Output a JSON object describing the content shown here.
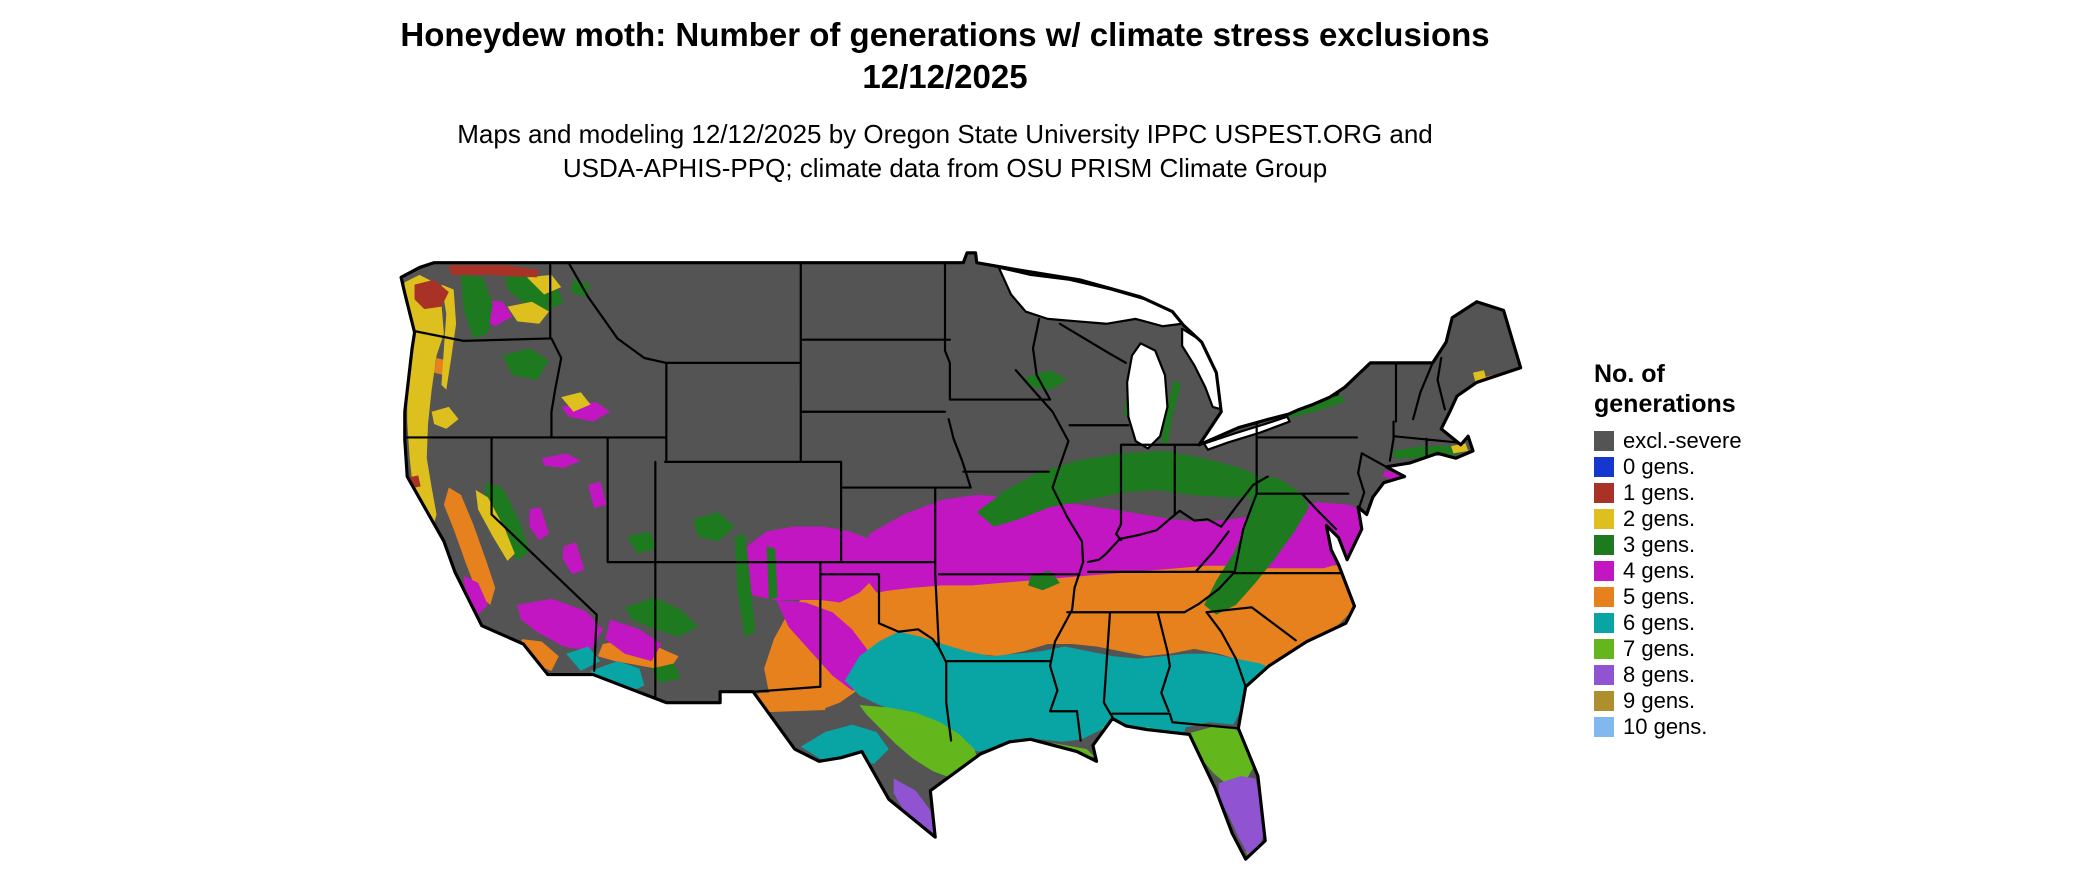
{
  "header": {
    "title": "Honeydew moth: Number of generations w/ climate stress exclusions",
    "date": "12/12/2025",
    "subtitle_line1": "Maps and modeling 12/12/2025 by Oregon State University IPPC USPEST.ORG and",
    "subtitle_line2": "USDA-APHIS-PPQ; climate data from OSU PRISM Climate Group"
  },
  "legend": {
    "title_line1": "No. of",
    "title_line2": "generations",
    "items": [
      {
        "label": "excl.-severe",
        "color": "#545454"
      },
      {
        "label": "0 gens.",
        "color": "#1637cf"
      },
      {
        "label": "1 gens.",
        "color": "#a93226"
      },
      {
        "label": "2 gens.",
        "color": "#ddbf1d"
      },
      {
        "label": "3 gens.",
        "color": "#1e7a1e"
      },
      {
        "label": "4 gens.",
        "color": "#c316c3"
      },
      {
        "label": "5 gens.",
        "color": "#e6811d"
      },
      {
        "label": "6 gens.",
        "color": "#09a4a4"
      },
      {
        "label": "7 gens.",
        "color": "#63b61c"
      },
      {
        "label": "8 gens.",
        "color": "#9053d2"
      },
      {
        "label": "9 gens.",
        "color": "#ad8f2d"
      },
      {
        "label": "10 gens.",
        "color": "#82b8f0"
      }
    ]
  },
  "map": {
    "region": "Continental United States",
    "palette": {
      "excl_severe": "#545454",
      "gen0": "#1637cf",
      "gen1": "#a93226",
      "gen2": "#ddbf1d",
      "gen3": "#1e7a1e",
      "gen4": "#c316c3",
      "gen5": "#e6811d",
      "gen6": "#09a4a4",
      "gen7": "#63b61c",
      "gen8": "#9053d2",
      "gen9": "#ad8f2d",
      "gen10": "#82b8f0",
      "water": "#ffffff",
      "border": "#000000"
    }
  }
}
